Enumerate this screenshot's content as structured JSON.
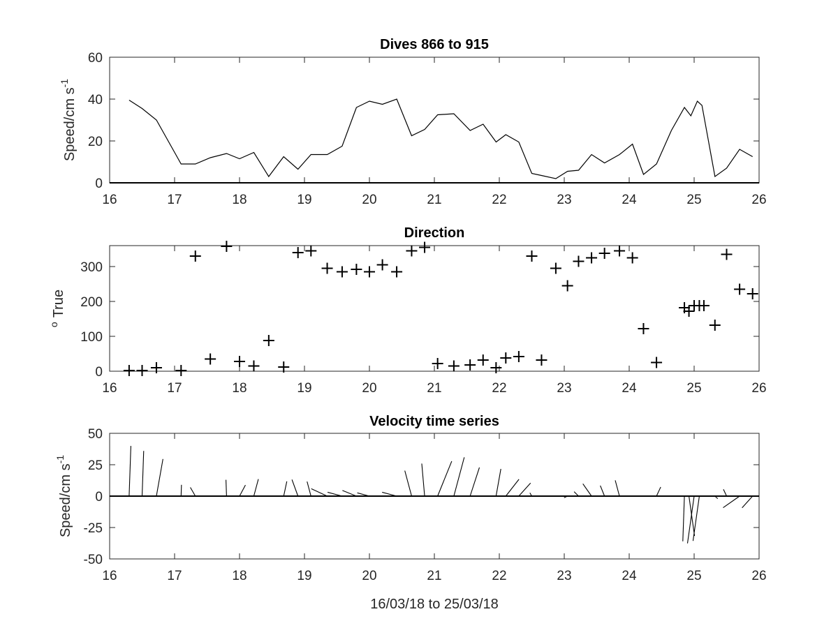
{
  "figure": {
    "xlabel": "16/03/18 to 25/03/18"
  },
  "chart_data": [
    {
      "type": "line",
      "title": "Dives 866 to 915",
      "ylabel": "Speed/cm s",
      "ylabel_sup": "-1",
      "xlim": [
        16,
        26
      ],
      "ylim": [
        0,
        60
      ],
      "xticks": [
        16,
        17,
        18,
        19,
        20,
        21,
        22,
        23,
        24,
        25,
        26
      ],
      "yticks": [
        0,
        20,
        40,
        60
      ],
      "grid": false,
      "x": [
        16.3,
        16.5,
        16.72,
        17.1,
        17.32,
        17.55,
        17.8,
        18.0,
        18.22,
        18.45,
        18.68,
        18.9,
        19.1,
        19.35,
        19.58,
        19.8,
        20.0,
        20.2,
        20.42,
        20.65,
        20.85,
        21.05,
        21.3,
        21.55,
        21.75,
        21.95,
        22.1,
        22.3,
        22.5,
        22.65,
        22.87,
        23.05,
        23.22,
        23.42,
        23.62,
        23.85,
        24.05,
        24.22,
        24.42,
        24.65,
        24.85,
        24.95,
        25.05,
        25.12,
        25.32,
        25.5,
        25.7,
        25.9
      ],
      "values": [
        39.5,
        35.5,
        30,
        9,
        9,
        12,
        14,
        11.5,
        14.5,
        3,
        12.5,
        6.5,
        13.5,
        13.5,
        17.5,
        36,
        39,
        37.5,
        40,
        22.5,
        25.5,
        32.5,
        33,
        25,
        28,
        19.5,
        23,
        19.5,
        4.5,
        3.5,
        2,
        5.5,
        6,
        13.5,
        9.5,
        13.5,
        18.5,
        4,
        9,
        25,
        36,
        32,
        39,
        37,
        3,
        7,
        16,
        12.5
      ]
    },
    {
      "type": "scatter",
      "title": "Direction",
      "ylabel": "True",
      "ylabel_prefix": "o",
      "xlim": [
        16,
        26
      ],
      "ylim": [
        0,
        360
      ],
      "xticks": [
        16,
        17,
        18,
        19,
        20,
        21,
        22,
        23,
        24,
        25,
        26
      ],
      "yticks": [
        0,
        100,
        200,
        300
      ],
      "grid": false,
      "marker": "+",
      "x": [
        16.3,
        16.5,
        16.72,
        17.1,
        17.32,
        17.55,
        17.8,
        18.0,
        18.22,
        18.45,
        18.68,
        18.9,
        19.1,
        19.35,
        19.58,
        19.8,
        20.0,
        20.2,
        20.42,
        20.65,
        20.85,
        21.05,
        21.3,
        21.55,
        21.75,
        21.95,
        22.1,
        22.3,
        22.5,
        22.65,
        22.87,
        23.05,
        23.22,
        23.42,
        23.62,
        23.85,
        24.05,
        24.22,
        24.42,
        24.85,
        24.92,
        25.0,
        25.08,
        25.15,
        25.32,
        25.5,
        25.7,
        25.9
      ],
      "values": [
        2,
        2,
        10,
        2,
        330,
        35,
        358,
        28,
        15,
        88,
        12,
        340,
        345,
        295,
        285,
        292,
        285,
        305,
        285,
        345,
        355,
        22,
        15,
        18,
        32,
        10,
        38,
        42,
        330,
        32,
        295,
        245,
        315,
        325,
        338,
        345,
        325,
        122,
        25,
        182,
        172,
        188,
        188,
        188,
        132,
        335,
        235,
        222
      ]
    },
    {
      "type": "line",
      "subtype": "stick",
      "title": "Velocity time series",
      "ylabel": "Speed/cm s",
      "ylabel_sup": "-1",
      "xlabel": "16/03/18 to 25/03/18",
      "xlim": [
        16,
        26
      ],
      "ylim": [
        -50,
        50
      ],
      "xticks": [
        16,
        17,
        18,
        19,
        20,
        21,
        22,
        23,
        24,
        25,
        26
      ],
      "yticks": [
        -50,
        -25,
        0,
        25,
        50
      ],
      "grid": false,
      "x": [
        16.3,
        16.5,
        16.72,
        17.1,
        17.32,
        17.8,
        18.0,
        18.22,
        18.68,
        18.9,
        19.1,
        19.35,
        19.58,
        19.8,
        20.0,
        20.42,
        20.65,
        20.85,
        21.05,
        21.3,
        21.55,
        21.95,
        22.1,
        22.3,
        22.5,
        23.05,
        23.22,
        23.42,
        23.62,
        23.85,
        24.42,
        24.85,
        24.92,
        25.0,
        25.08,
        25.32,
        25.5,
        25.7,
        25.9
      ],
      "values": [
        40,
        36,
        30,
        9,
        8,
        13,
        10,
        14,
        12,
        14,
        12,
        14,
        12,
        12,
        10,
        12,
        21,
        26,
        30,
        32,
        24,
        22,
        17,
        14,
        3,
        3,
        5,
        12,
        9,
        13,
        8,
        36,
        32,
        38,
        36,
        3,
        6,
        16,
        12.5
      ],
      "direction_deg": [
        2,
        2,
        10,
        2,
        330,
        358,
        28,
        15,
        12,
        340,
        345,
        295,
        285,
        292,
        285,
        285,
        345,
        355,
        22,
        15,
        18,
        10,
        38,
        42,
        330,
        245,
        315,
        325,
        338,
        345,
        25,
        182,
        172,
        188,
        188,
        132,
        335,
        235,
        222
      ]
    }
  ]
}
